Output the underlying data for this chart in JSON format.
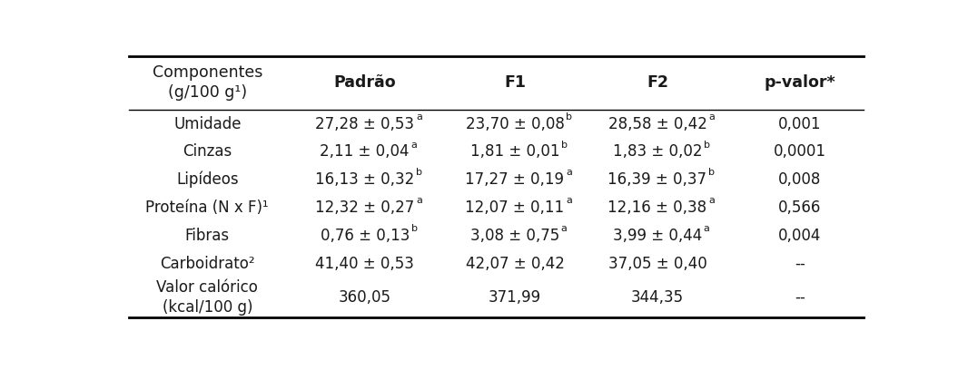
{
  "col_headers": [
    "Componentes\n(g/100 g¹)",
    "Padrão",
    "F1",
    "F2",
    "p-valor*"
  ],
  "rows": [
    {
      "component": "Umidade",
      "padrao": "27,28 ± 0,53",
      "padrao_sup": "a",
      "f1": "23,70 ± 0,08",
      "f1_sup": "b",
      "f2": "28,58 ± 0,42",
      "f2_sup": "a",
      "pvalor": "0,001"
    },
    {
      "component": "Cinzas",
      "padrao": "2,11 ± 0,04",
      "padrao_sup": "a",
      "f1": "1,81 ± 0,01",
      "f1_sup": "b",
      "f2": "1,83 ± 0,02",
      "f2_sup": "b",
      "pvalor": "0,0001"
    },
    {
      "component": "Lipídeos",
      "padrao": "16,13 ± 0,32",
      "padrao_sup": "b",
      "f1": "17,27 ± 0,19",
      "f1_sup": "a",
      "f2": "16,39 ± 0,37",
      "f2_sup": "b",
      "pvalor": "0,008"
    },
    {
      "component": "Proteína (N x F)¹",
      "padrao": "12,32 ± 0,27",
      "padrao_sup": "a",
      "f1": "12,07 ± 0,11",
      "f1_sup": "a",
      "f2": "12,16 ± 0,38",
      "f2_sup": "a",
      "pvalor": "0,566"
    },
    {
      "component": "Fibras",
      "padrao": "0,76 ± 0,13",
      "padrao_sup": "b",
      "f1": "3,08 ± 0,75",
      "f1_sup": "a",
      "f2": "3,99 ± 0,44",
      "f2_sup": "a",
      "pvalor": "0,004"
    },
    {
      "component": "Carboidrato²",
      "padrao": "41,40 ± 0,53",
      "padrao_sup": "",
      "f1": "42,07 ± 0,42",
      "f1_sup": "",
      "f2": "37,05 ± 0,40",
      "f2_sup": "",
      "pvalor": "--"
    },
    {
      "component": "Valor calórico\n(kcal/100 g)",
      "padrao": "360,05",
      "padrao_sup": "",
      "f1": "371,99",
      "f1_sup": "",
      "f2": "344,35",
      "f2_sup": "",
      "pvalor": "--"
    }
  ],
  "bg_color": "#ffffff",
  "text_color": "#1a1a1a",
  "header_fontsize": 12.5,
  "body_fontsize": 12,
  "sup_fontsize": 8
}
